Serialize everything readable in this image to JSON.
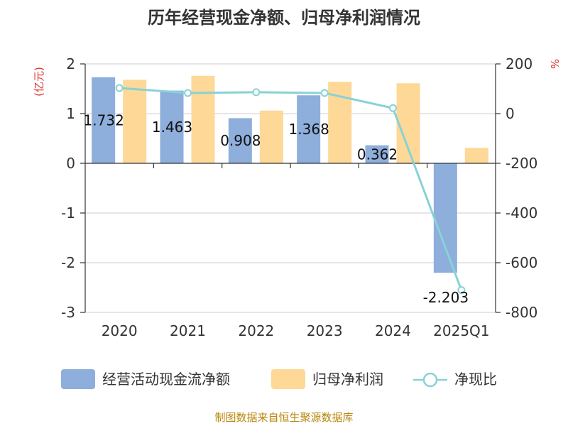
{
  "chart_data": {
    "type": "bar",
    "title": "历年经营现金净额、归母净利润情况",
    "categories": [
      "2020",
      "2021",
      "2022",
      "2023",
      "2024",
      "2025Q1"
    ],
    "series": [
      {
        "name": "经营活动现金流净额",
        "kind": "bar",
        "axis": "left",
        "color": "#8eaedb",
        "values": [
          1.732,
          1.463,
          0.908,
          1.368,
          0.362,
          -2.203
        ],
        "labels": [
          "1.732",
          "1.463",
          "0.908",
          "1.368",
          "0.362",
          "-2.203"
        ]
      },
      {
        "name": "归母净利润",
        "kind": "bar",
        "axis": "left",
        "color": "#fdd897",
        "values": [
          1.68,
          1.76,
          1.06,
          1.64,
          1.61,
          0.31
        ]
      },
      {
        "name": "净现比",
        "kind": "line",
        "axis": "right",
        "color": "#88d2d6",
        "values": [
          103,
          83,
          86,
          83,
          22,
          -710
        ]
      }
    ],
    "left_axis": {
      "unit": "(亿元)",
      "ylim": [
        -3,
        2
      ],
      "ticks": [
        "2",
        "1",
        "0",
        "-1",
        "-2",
        "-3"
      ]
    },
    "right_axis": {
      "unit": "%",
      "ylim": [
        -800,
        200
      ],
      "ticks": [
        "200",
        "0",
        "-200",
        "-400",
        "-600",
        "-800"
      ]
    },
    "grid": true,
    "legend_position": "bottom"
  },
  "source_text": "制图数据来自恒生聚源数据库"
}
